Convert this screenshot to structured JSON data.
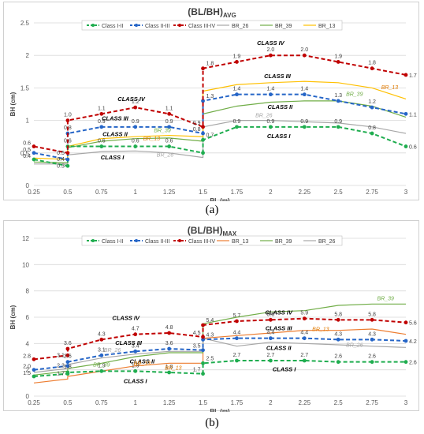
{
  "chart_data": [
    {
      "type": "line",
      "panel_label": "(a)",
      "title": "(BL/BH)",
      "title_sub": "AVG",
      "xlabel": "BL (m)",
      "ylabel": "BH (cm)",
      "xlim": [
        0.25,
        3
      ],
      "ylim": [
        0,
        2.5
      ],
      "x_ticks": [
        "0.25",
        "0.5",
        "0.75",
        "1",
        "1.25",
        "1.5",
        "1.75",
        "2",
        "2.25",
        "2.5",
        "2.75",
        "3"
      ],
      "y_ticks": [
        "0",
        "0.5",
        "1",
        "1.5",
        "2",
        "2.5"
      ],
      "grid": true,
      "legend_position": "top",
      "series": [
        {
          "name": "Class I-II",
          "color": "#1fad4f",
          "style": "dashed-marker",
          "x": [
            0.25,
            0.5,
            0.5,
            0.75,
            1,
            1.25,
            1.5,
            1.5,
            1.75,
            2,
            2.25,
            2.5,
            2.75,
            3
          ],
          "y": [
            0.4,
            0.3,
            0.6,
            0.6,
            0.6,
            0.6,
            0.5,
            0.7,
            0.9,
            0.9,
            0.9,
            0.9,
            0.8,
            0.6
          ],
          "labels": [
            "0.4",
            "0.3",
            "0.6",
            "0.6",
            "0.6",
            "0.6",
            "",
            "0.7",
            "0.9",
            "0.9",
            "0.9",
            "0.9",
            "0.8",
            "0.6"
          ]
        },
        {
          "name": "Class II-III",
          "color": "#2565c7",
          "style": "dashed-marker",
          "x": [
            0.25,
            0.5,
            0.5,
            0.75,
            1,
            1.25,
            1.5,
            1.5,
            1.75,
            2,
            2.25,
            2.5,
            2.75,
            3
          ],
          "y": [
            0.5,
            0.4,
            0.8,
            0.9,
            0.9,
            0.9,
            0.8,
            1.3,
            1.4,
            1.4,
            1.4,
            1.3,
            1.2,
            1.1
          ],
          "labels": [
            "0.5",
            "0.4",
            "0.8",
            "0.9",
            "0.9",
            "0.9",
            "0.8",
            "1.3",
            "1.4",
            "1.4",
            "1.4",
            "1.3",
            "1.2",
            "1.1"
          ]
        },
        {
          "name": "Class III-IV",
          "color": "#c00000",
          "style": "dashed-marker",
          "x": [
            0.25,
            0.5,
            0.5,
            0.75,
            1,
            1.25,
            1.5,
            1.5,
            1.75,
            2,
            2.25,
            2.5,
            2.75,
            3
          ],
          "y": [
            0.6,
            0.5,
            1.0,
            1.1,
            1.2,
            1.1,
            0.9,
            1.8,
            1.9,
            2.0,
            2.0,
            1.9,
            1.8,
            1.7
          ],
          "labels": [
            "0.6",
            "0.5",
            "1.0",
            "1.1",
            "1.2",
            "1.1",
            "0.9",
            "1.8",
            "1.9",
            "2.0",
            "2.0",
            "1.9",
            "1.8",
            "1.7"
          ]
        },
        {
          "name": "BR_26",
          "color": "#a6a6a6",
          "style": "line",
          "x": [
            0.25,
            0.5,
            0.5,
            0.75,
            1,
            1.25,
            1.5,
            1.5,
            1.75,
            2,
            2.25,
            2.5,
            2.75,
            3
          ],
          "y": [
            0.33,
            0.33,
            0.47,
            0.52,
            0.53,
            0.5,
            0.43,
            0.9,
            1.0,
            1.0,
            0.98,
            0.96,
            0.9,
            0.8
          ]
        },
        {
          "name": "BR_39",
          "color": "#70ad47",
          "style": "line",
          "x": [
            0.25,
            0.5,
            0.5,
            0.75,
            1,
            1.25,
            1.5,
            1.5,
            1.75,
            2,
            2.25,
            2.5,
            2.75,
            3
          ],
          "y": [
            0.36,
            0.35,
            0.58,
            0.68,
            0.72,
            0.73,
            0.68,
            1.1,
            1.22,
            1.28,
            1.3,
            1.3,
            1.22,
            1.05
          ]
        },
        {
          "name": "BR_13",
          "color": "#ffc000",
          "style": "line",
          "x": [
            0.25,
            0.5,
            0.5,
            0.75,
            1,
            1.25,
            1.5,
            1.5,
            1.75,
            2,
            2.25,
            2.5,
            2.75,
            3
          ],
          "y": [
            0.42,
            0.4,
            0.6,
            0.72,
            0.75,
            0.77,
            0.75,
            1.45,
            1.55,
            1.58,
            1.6,
            1.58,
            1.5,
            1.33
          ]
        }
      ],
      "annotations": [
        {
          "text": "CLASS IV",
          "x": 0.97,
          "y": 1.3,
          "color": "#000000"
        },
        {
          "text": "CLASS III",
          "x": 0.85,
          "y": 1.0,
          "color": "#000000"
        },
        {
          "text": "CLASS II",
          "x": 0.85,
          "y": 0.76,
          "color": "#000000"
        },
        {
          "text": "CLASS I",
          "x": 0.83,
          "y": 0.4,
          "color": "#000000"
        },
        {
          "text": "BR_39",
          "x": 1.2,
          "y": 0.82,
          "color": "#70ad47"
        },
        {
          "text": "BR_13",
          "x": 1.12,
          "y": 0.69,
          "color": "#e07a00"
        },
        {
          "text": "BR_26",
          "x": 1.22,
          "y": 0.44,
          "color": "#a6a6a6"
        },
        {
          "text": "CLASS IV",
          "x": 2.0,
          "y": 2.16,
          "color": "#000000"
        },
        {
          "text": "CLASS III",
          "x": 2.05,
          "y": 1.65,
          "color": "#000000"
        },
        {
          "text": "CLASS II",
          "x": 2.07,
          "y": 1.18,
          "color": "#000000"
        },
        {
          "text": "CLASS I",
          "x": 2.06,
          "y": 0.73,
          "color": "#000000"
        },
        {
          "text": "BR_13",
          "x": 2.88,
          "y": 1.48,
          "color": "#e07a00"
        },
        {
          "text": "BR_39",
          "x": 2.62,
          "y": 1.38,
          "color": "#70ad47"
        },
        {
          "text": "BR_26",
          "x": 1.95,
          "y": 1.05,
          "color": "#a6a6a6"
        }
      ]
    },
    {
      "type": "line",
      "panel_label": "(b)",
      "title": "(BL/BH)",
      "title_sub": "MAX",
      "xlabel": "BL (m)",
      "ylabel": "BH (cm)",
      "xlim": [
        0.25,
        3
      ],
      "ylim": [
        0,
        12
      ],
      "x_ticks": [
        "0.25",
        "0.5",
        "0.75",
        "1",
        "1.25",
        "1.5",
        "1.75",
        "2",
        "2.25",
        "2.5",
        "2.75",
        "3"
      ],
      "y_ticks": [
        "0",
        "2",
        "4",
        "6",
        "8",
        "10",
        "12"
      ],
      "grid": true,
      "legend_position": "top",
      "series": [
        {
          "name": "Class I-II",
          "color": "#1fad4f",
          "style": "dashed-marker",
          "x": [
            0.25,
            0.5,
            0.5,
            0.75,
            1,
            1.25,
            1.5,
            1.5,
            1.75,
            2,
            2.25,
            2.5,
            2.75,
            3
          ],
          "y": [
            1.5,
            1.7,
            1.8,
            1.9,
            1.9,
            1.8,
            1.7,
            2.5,
            2.7,
            2.7,
            2.7,
            2.6,
            2.6,
            2.6
          ],
          "labels": [
            "1.5",
            "1.7",
            "1.8",
            "1.9",
            "1.9",
            "1.8",
            "1.7",
            "2.5",
            "2.7",
            "2.7",
            "2.7",
            "2.6",
            "2.6",
            "2.6"
          ]
        },
        {
          "name": "Class II-III",
          "color": "#2565c7",
          "style": "dashed-marker",
          "x": [
            0.25,
            0.5,
            0.5,
            0.75,
            1,
            1.25,
            1.5,
            1.5,
            1.75,
            2,
            2.25,
            2.5,
            2.75,
            3
          ],
          "y": [
            2.0,
            2.3,
            2.6,
            3.1,
            3.4,
            3.6,
            3.5,
            4.3,
            4.4,
            4.4,
            4.4,
            4.3,
            4.3,
            4.2
          ],
          "labels": [
            "2.0",
            "2.3",
            "2.6",
            "3.1",
            "3.4",
            "3.6",
            "3.5",
            "4.3",
            "4.4",
            "4.4",
            "4.4",
            "4.3",
            "4.3",
            "4.2"
          ]
        },
        {
          "name": "Class III-IV",
          "color": "#c00000",
          "style": "dashed-marker",
          "x": [
            0.25,
            0.5,
            0.5,
            0.75,
            1,
            1.25,
            1.5,
            1.5,
            1.75,
            2,
            2.25,
            2.5,
            2.75,
            3
          ],
          "y": [
            2.8,
            3.1,
            3.6,
            4.3,
            4.7,
            4.8,
            4.5,
            5.4,
            5.7,
            5.8,
            5.9,
            5.8,
            5.8,
            5.6
          ],
          "labels": [
            "2.8",
            "3.1",
            "3.6",
            "4.3",
            "4.7",
            "4.8",
            "4.5",
            "5.4",
            "5.7",
            "5.8",
            "5.9",
            "5.8",
            "5.8",
            "5.6"
          ]
        },
        {
          "name": "BR_13",
          "color": "#ed7d31",
          "style": "line",
          "x": [
            0.25,
            0.5,
            0.5,
            0.75,
            1,
            1.25,
            1.5,
            1.5,
            1.75,
            2,
            2.25,
            2.5,
            2.75,
            3
          ],
          "y": [
            1.0,
            1.3,
            1.5,
            1.9,
            2.3,
            2.5,
            2.5,
            4.4,
            4.6,
            4.8,
            5.0,
            5.0,
            5.1,
            4.7
          ]
        },
        {
          "name": "BR_39",
          "color": "#70ad47",
          "style": "line",
          "x": [
            0.25,
            0.5,
            0.5,
            0.75,
            1,
            1.25,
            1.5,
            1.5,
            1.75,
            2,
            2.25,
            2.5,
            2.75,
            3
          ],
          "y": [
            1.6,
            1.9,
            2.1,
            2.5,
            3.0,
            3.3,
            3.3,
            5.5,
            6.0,
            6.4,
            6.5,
            6.9,
            7.0,
            7.0
          ]
        },
        {
          "name": "BR_26",
          "color": "#a6a6a6",
          "style": "line",
          "x": [
            0.25,
            0.5,
            0.5,
            0.75,
            1,
            1.25,
            1.5,
            1.5,
            1.75,
            2,
            2.25,
            2.5,
            2.75,
            3
          ],
          "y": [
            1.8,
            2.1,
            2.4,
            2.9,
            3.2,
            3.4,
            3.4,
            4.4,
            3.8,
            4.1,
            4.0,
            3.9,
            3.8,
            3.7
          ]
        }
      ],
      "annotations": [
        {
          "text": "CLASS IV",
          "x": 0.93,
          "y": 5.8,
          "color": "#000000"
        },
        {
          "text": "CLASS III",
          "x": 0.95,
          "y": 3.9,
          "color": "#000000"
        },
        {
          "text": "BR_26",
          "x": 0.83,
          "y": 3.35,
          "color": "#a6a6a6"
        },
        {
          "text": "CLASS II",
          "x": 1.05,
          "y": 2.5,
          "color": "#000000"
        },
        {
          "text": "BR_13",
          "x": 1.05,
          "y": 2.35,
          "color": "#e07a00"
        },
        {
          "text": "BR_39",
          "x": 0.75,
          "y": 2.25,
          "color": "#70ad47"
        },
        {
          "text": "BR_13",
          "x": 1.28,
          "y": 2.0,
          "color": "#e07a00"
        },
        {
          "text": "CLASS I",
          "x": 1.0,
          "y": 1.0,
          "color": "#000000"
        },
        {
          "text": "CLASS IV",
          "x": 2.06,
          "y": 6.2,
          "color": "#000000"
        },
        {
          "text": "CLASS III",
          "x": 2.06,
          "y": 5.0,
          "color": "#000000"
        },
        {
          "text": "BR_13",
          "x": 2.37,
          "y": 4.95,
          "color": "#e07a00"
        },
        {
          "text": "CLASS II",
          "x": 2.06,
          "y": 3.5,
          "color": "#000000"
        },
        {
          "text": "BR_26",
          "x": 2.62,
          "y": 3.75,
          "color": "#a6a6a6"
        },
        {
          "text": "CLASS I",
          "x": 2.1,
          "y": 1.9,
          "color": "#000000"
        },
        {
          "text": "BR_39",
          "x": 2.85,
          "y": 7.3,
          "color": "#70ad47"
        }
      ]
    }
  ]
}
